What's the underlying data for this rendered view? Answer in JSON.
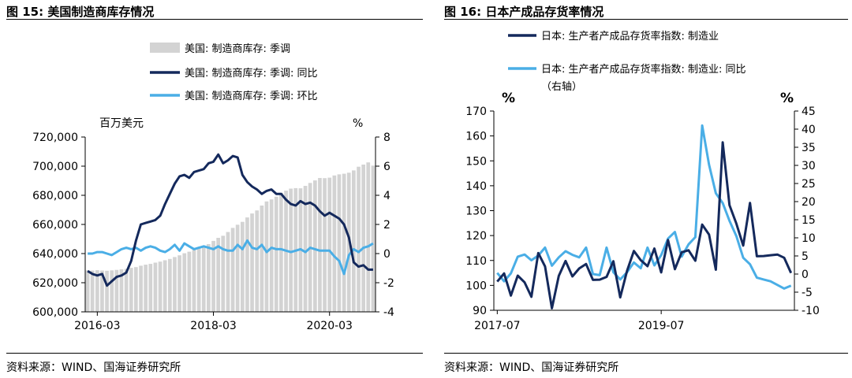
{
  "left": {
    "title": "图 15:  美国制造商库存情况",
    "source": "资料来源：WIND、国海证券研究所",
    "chart_data": {
      "type": "bar+line",
      "left_unit": "百万美元",
      "right_unit": "%",
      "left_ylim": [
        600000,
        720000
      ],
      "left_ticks": [
        "600,000",
        "620,000",
        "640,000",
        "660,000",
        "680,000",
        "700,000",
        "720,000"
      ],
      "left_tick_values": [
        600000,
        620000,
        640000,
        660000,
        680000,
        700000,
        720000
      ],
      "right_ylim": [
        -4,
        8
      ],
      "right_ticks": [
        "-4",
        "-2",
        "0",
        "2",
        "4",
        "6",
        "8"
      ],
      "right_tick_values": [
        -4,
        -2,
        0,
        2,
        4,
        6,
        8
      ],
      "x_start": "2016-01",
      "x_ticks": [
        {
          "label": "2016-03",
          "index": 2
        },
        {
          "label": "2018-03",
          "index": 26
        },
        {
          "label": "2020-03",
          "index": 50
        }
      ],
      "n_months": 60,
      "legend": [
        "美国: 制造商库存: 季调",
        "美国: 制造商库存: 季调: 同比",
        "美国: 制造商库存: 季调: 环比"
      ],
      "colors": {
        "bar": "#d3d3d3",
        "yoy": "#14295c",
        "mom": "#4aaee6"
      },
      "inventory": [
        628500,
        628300,
        628600,
        628400,
        628200,
        628500,
        628800,
        629200,
        629500,
        630200,
        630700,
        631700,
        632400,
        632900,
        633800,
        634500,
        635400,
        636300,
        637600,
        638800,
        640200,
        641300,
        642500,
        643700,
        645000,
        646500,
        648700,
        650800,
        652200,
        654800,
        657600,
        659800,
        661800,
        664800,
        667500,
        669600,
        673000,
        675800,
        677200,
        679000,
        681800,
        683200,
        684600,
        684900,
        684800,
        686500,
        688500,
        690200,
        691900,
        691800,
        692100,
        693600,
        694400,
        694800,
        695500,
        697100,
        699600,
        701100,
        702600,
        700400
      ],
      "yoy": [
        -1.2,
        -1.4,
        -1.5,
        -1.4,
        -2.2,
        -1.9,
        -1.6,
        -1.5,
        -1.3,
        -0.5,
        0.9,
        2.0,
        2.1,
        2.2,
        2.3,
        2.6,
        3.4,
        4.1,
        4.8,
        5.3,
        5.4,
        5.2,
        5.6,
        5.7,
        5.8,
        6.2,
        6.3,
        6.8,
        6.2,
        6.4,
        6.7,
        6.6,
        5.4,
        4.9,
        4.6,
        4.4,
        4.1,
        4.3,
        4.4,
        4.1,
        4.1,
        3.7,
        3.4,
        3.3,
        3.6,
        3.4,
        3.5,
        3.3,
        2.9,
        2.6,
        2.8,
        2.6,
        2.4,
        2.0,
        1.1,
        -0.6,
        -0.9,
        -0.8,
        -1.1,
        -1.1
      ],
      "mom": [
        0.0,
        0.0,
        0.1,
        0.1,
        0.0,
        -0.1,
        0.1,
        0.3,
        0.4,
        0.3,
        0.4,
        0.2,
        0.4,
        0.5,
        0.4,
        0.2,
        0.1,
        0.3,
        0.6,
        0.2,
        0.7,
        0.5,
        0.3,
        0.4,
        0.5,
        0.4,
        0.3,
        0.5,
        0.3,
        0.2,
        0.2,
        0.6,
        0.3,
        0.9,
        0.4,
        0.3,
        0.6,
        0.1,
        0.4,
        0.3,
        0.3,
        0.2,
        0.1,
        0.2,
        0.3,
        0.1,
        0.4,
        0.3,
        0.2,
        0.2,
        0.2,
        -0.2,
        -0.5,
        -1.4,
        -0.1,
        0.3,
        0.1,
        0.4,
        0.5,
        0.7
      ]
    }
  },
  "right": {
    "title": "图 16:  日本产成品存货率情况",
    "source": "资料来源：WIND、国海证券研究所",
    "chart_data": {
      "type": "line",
      "left_unit": "%",
      "right_unit": "%",
      "left_ylim": [
        90,
        170
      ],
      "left_ticks": [
        "90",
        "100",
        "110",
        "120",
        "130",
        "140",
        "150",
        "160",
        "170"
      ],
      "left_tick_values": [
        90,
        100,
        110,
        120,
        130,
        140,
        150,
        160,
        170
      ],
      "right_ylim": [
        -10,
        45
      ],
      "right_ticks": [
        "-10",
        "-5",
        "0",
        "5",
        "10",
        "15",
        "20",
        "25",
        "30",
        "35",
        "40",
        "45"
      ],
      "right_tick_values": [
        -10,
        -5,
        0,
        5,
        10,
        15,
        20,
        25,
        30,
        35,
        40,
        45
      ],
      "x_start": "2017-07",
      "x_ticks": [
        {
          "label": "2017-07",
          "index": 0
        },
        {
          "label": "2019-07",
          "index": 24
        }
      ],
      "n_months": 44,
      "legend": [
        "日本: 生产者产成品存货率指数: 制造业",
        "日本: 生产者产成品存货率指数: 制造业: 同比",
        "（右轴）"
      ],
      "colors": {
        "level": "#14295c",
        "yoy": "#4aaee6"
      },
      "level": [
        101.5,
        104.8,
        95.9,
        103.9,
        101.2,
        95.4,
        113.0,
        107.6,
        90.8,
        103.8,
        109.8,
        103.6,
        106.8,
        108.6,
        102.2,
        102.3,
        103.4,
        109.7,
        95.2,
        105.9,
        113.8,
        110.1,
        107.7,
        114.8,
        105.2,
        118.2,
        106.5,
        113.3,
        114.1,
        109.9,
        124.4,
        120.4,
        106.3,
        157.4,
        132.2,
        124.8,
        116.0,
        133.1,
        111.7,
        111.8,
        112.1,
        112.4,
        111.1,
        105.0
      ],
      "yoy": [
        0.3,
        -2.0,
        0.2,
        4.8,
        5.4,
        3.8,
        5.1,
        7.3,
        2.3,
        4.6,
        6.3,
        5.3,
        4.6,
        7.3,
        0.0,
        -0.3,
        7.3,
        0.5,
        -1.5,
        0.5,
        3.2,
        1.6,
        7.3,
        2.4,
        5.2,
        9.8,
        11.6,
        4.8,
        8.2,
        10.2,
        41.0,
        30.2,
        22.3,
        19.6,
        14.7,
        10.5,
        4.5,
        2.7,
        -1.0,
        -1.5,
        -2.0,
        -3.0,
        -4.0,
        -3.2
      ]
    }
  }
}
